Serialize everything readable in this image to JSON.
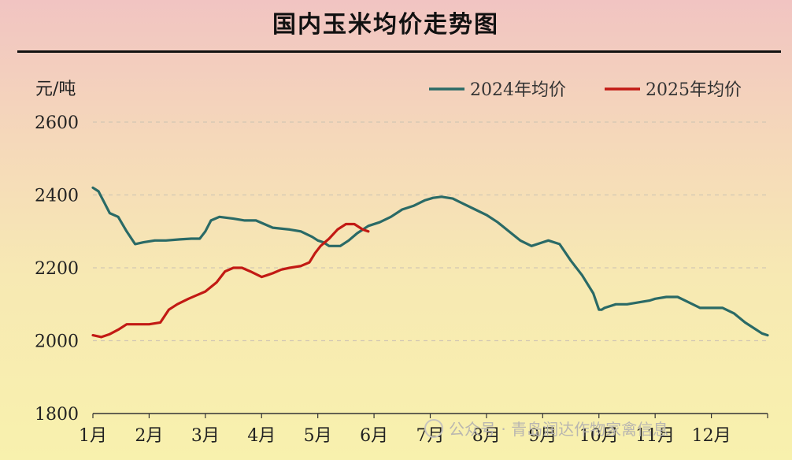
{
  "chart_data": {
    "type": "line",
    "title": "国内玉米均价走势图",
    "ylabel": "元/吨",
    "ylim": [
      1800,
      2600
    ],
    "yticks": [
      1800,
      2000,
      2200,
      2400,
      2600
    ],
    "categories": [
      "1月",
      "2月",
      "3月",
      "4月",
      "5月",
      "6月",
      "7月",
      "8月",
      "9月",
      "10月",
      "11月",
      "12月"
    ],
    "xlim": [
      1,
      13
    ],
    "grid": "horizontal dashed",
    "legend_position": "top-right",
    "series": [
      {
        "name": "2024年均价",
        "color": "#2a6a66",
        "x": [
          1.0,
          1.1,
          1.2,
          1.3,
          1.45,
          1.6,
          1.75,
          1.9,
          2.1,
          2.3,
          2.55,
          2.75,
          2.9,
          3.0,
          3.1,
          3.25,
          3.5,
          3.7,
          3.9,
          4.05,
          4.2,
          4.5,
          4.7,
          4.9,
          5.0,
          5.1,
          5.2,
          5.4,
          5.55,
          5.7,
          5.9,
          6.1,
          6.3,
          6.5,
          6.7,
          6.9,
          7.05,
          7.2,
          7.4,
          7.6,
          7.8,
          8.0,
          8.2,
          8.4,
          8.6,
          8.8,
          9.0,
          9.1,
          9.3,
          9.5,
          9.7,
          9.9,
          10.0,
          10.05,
          10.1,
          10.3,
          10.5,
          10.7,
          10.9,
          11.0,
          11.2,
          11.4,
          11.6,
          11.8,
          12.0,
          12.2,
          12.4,
          12.6,
          12.8,
          12.9,
          13.0
        ],
        "y": [
          2420,
          2410,
          2380,
          2350,
          2340,
          2300,
          2265,
          2270,
          2275,
          2275,
          2278,
          2280,
          2280,
          2300,
          2330,
          2340,
          2335,
          2330,
          2330,
          2320,
          2310,
          2305,
          2300,
          2285,
          2275,
          2270,
          2260,
          2260,
          2275,
          2295,
          2315,
          2325,
          2340,
          2360,
          2370,
          2385,
          2392,
          2395,
          2390,
          2375,
          2360,
          2345,
          2325,
          2300,
          2275,
          2260,
          2270,
          2275,
          2265,
          2220,
          2180,
          2130,
          2085,
          2085,
          2090,
          2100,
          2100,
          2105,
          2110,
          2115,
          2120,
          2120,
          2105,
          2090,
          2090,
          2090,
          2075,
          2050,
          2030,
          2020,
          2015
        ]
      },
      {
        "name": "2025年均价",
        "color": "#c21a14",
        "x": [
          1.0,
          1.15,
          1.3,
          1.45,
          1.6,
          1.75,
          2.0,
          2.2,
          2.35,
          2.5,
          2.7,
          2.85,
          3.0,
          3.2,
          3.35,
          3.5,
          3.65,
          3.8,
          4.0,
          4.1,
          4.2,
          4.35,
          4.5,
          4.7,
          4.85,
          4.95,
          5.05,
          5.2,
          5.35,
          5.5,
          5.65,
          5.8,
          5.9
        ],
        "y": [
          2015,
          2010,
          2018,
          2030,
          2045,
          2045,
          2045,
          2050,
          2085,
          2100,
          2115,
          2125,
          2135,
          2160,
          2190,
          2200,
          2200,
          2190,
          2175,
          2180,
          2185,
          2195,
          2200,
          2205,
          2215,
          2240,
          2260,
          2280,
          2305,
          2320,
          2320,
          2305,
          2300
        ]
      }
    ]
  },
  "watermark": "公众号 · 青岛润达作物家禽信息"
}
